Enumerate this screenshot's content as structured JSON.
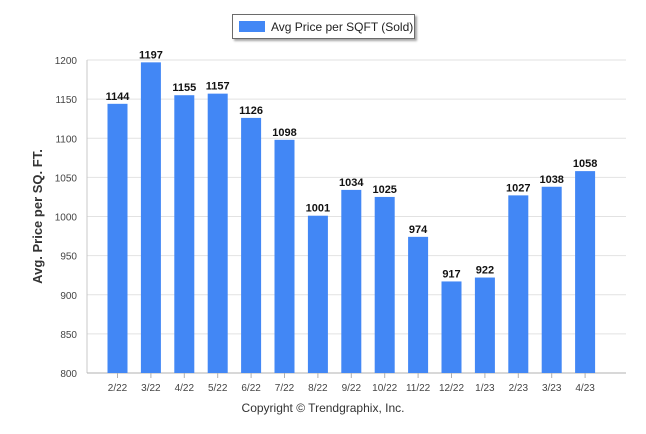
{
  "chart_data": {
    "type": "bar",
    "title": "",
    "xlabel": "",
    "ylabel": "Avg. Price per SQ. FT.",
    "ylim": [
      800,
      1200
    ],
    "yticks": [
      800,
      850,
      900,
      950,
      1000,
      1050,
      1100,
      1150,
      1200
    ],
    "grid": true,
    "legend_position": "top-center",
    "categories": [
      "2/22",
      "3/22",
      "4/22",
      "5/22",
      "6/22",
      "7/22",
      "8/22",
      "9/22",
      "10/22",
      "11/22",
      "12/22",
      "1/23",
      "2/23",
      "3/23",
      "4/23"
    ],
    "series": [
      {
        "name": "Avg Price per SQFT (Sold)",
        "color": "#4287f5",
        "values": [
          1144,
          1197,
          1155,
          1157,
          1126,
          1098,
          1001,
          1034,
          1025,
          974,
          917,
          922,
          1027,
          1038,
          1058
        ]
      }
    ]
  },
  "footer": {
    "copyright": "Copyright © Trendgraphix, Inc."
  }
}
